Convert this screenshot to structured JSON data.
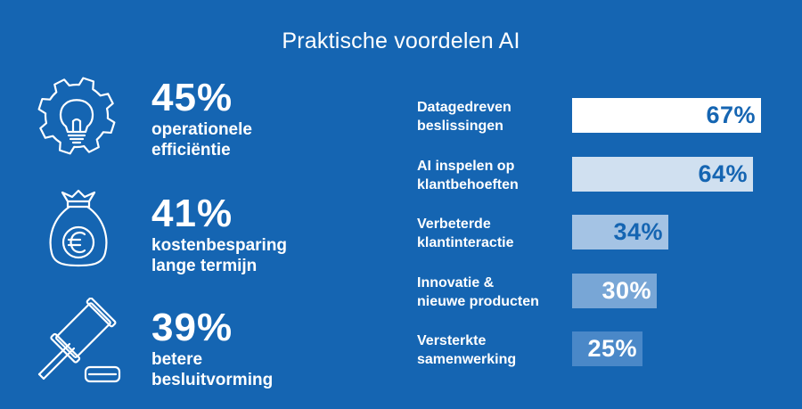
{
  "title": "Praktische voordelen AI",
  "stats": [
    {
      "value": "45%",
      "line1": "operationele",
      "line2": "efficiëntie",
      "icon": "gear-lightbulb-icon"
    },
    {
      "value": "41%",
      "line1": "kostenbesparing",
      "line2": "lange termijn",
      "icon": "money-bag-euro-icon"
    },
    {
      "value": "39%",
      "line1": "betere",
      "line2": "besluitvorming",
      "icon": "gavel-icon"
    }
  ],
  "chart_data": {
    "type": "bar",
    "orientation": "horizontal",
    "categories": [
      [
        "Datagedreven",
        "beslissingen"
      ],
      [
        "AI inspelen op",
        "klantbehoeften"
      ],
      [
        "Verbeterde",
        "klantinteractie"
      ],
      [
        "Innovatie &",
        "nieuwe producten"
      ],
      [
        "Versterkte",
        "samenwerking"
      ]
    ],
    "values": [
      67,
      64,
      34,
      30,
      25
    ],
    "value_labels": [
      "67%",
      "64%",
      "34%",
      "30%",
      "25%"
    ],
    "bar_colors": [
      "#ffffff",
      "#d0e0f0",
      "#a4c3e4",
      "#78a6d6",
      "#4a88c8"
    ],
    "label_colors": [
      "#1565b2",
      "#1565b2",
      "#1565b2",
      "#ffffff",
      "#ffffff"
    ],
    "xlim": [
      0,
      67
    ]
  }
}
